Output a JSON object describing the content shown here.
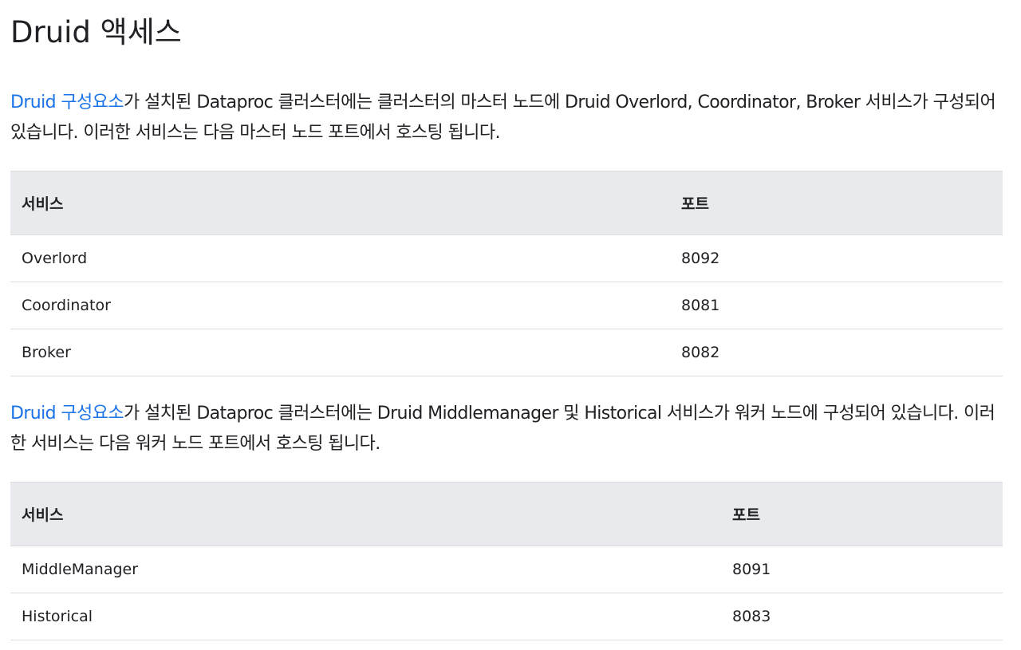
{
  "title": "Druid 액세스",
  "paragraph1": {
    "link_text": "Druid 구성요소",
    "text": "가 설치된 Dataproc 클러스터에는 클러스터의 마스터 노드에 Druid Overlord, Coordinator, Broker 서비스가 구성되어 있습니다. 이러한 서비스는 다음 마스터 노드 포트에서 호스팅 됩니다."
  },
  "table1": {
    "headers": [
      "서비스",
      "포트"
    ],
    "rows": [
      [
        "Overlord",
        "8092"
      ],
      [
        "Coordinator",
        "8081"
      ],
      [
        "Broker",
        "8082"
      ]
    ]
  },
  "paragraph2": {
    "link_text": "Druid 구성요소",
    "text": "가 설치된 Dataproc 클러스터에는 Druid Middlemanager 및 Historical 서비스가 워커 노드에 구성되어 있습니다. 이러한 서비스는 다음 워커 노드 포트에서 호스팅 됩니다."
  },
  "table2": {
    "headers": [
      "서비스",
      "포트"
    ],
    "rows": [
      [
        "MiddleManager",
        "8091"
      ],
      [
        "Historical",
        "8083"
      ]
    ]
  },
  "colors": {
    "link": "#1a73e8",
    "header_bg": "#e8eaed",
    "text": "#202124",
    "border": "#dadce0"
  }
}
